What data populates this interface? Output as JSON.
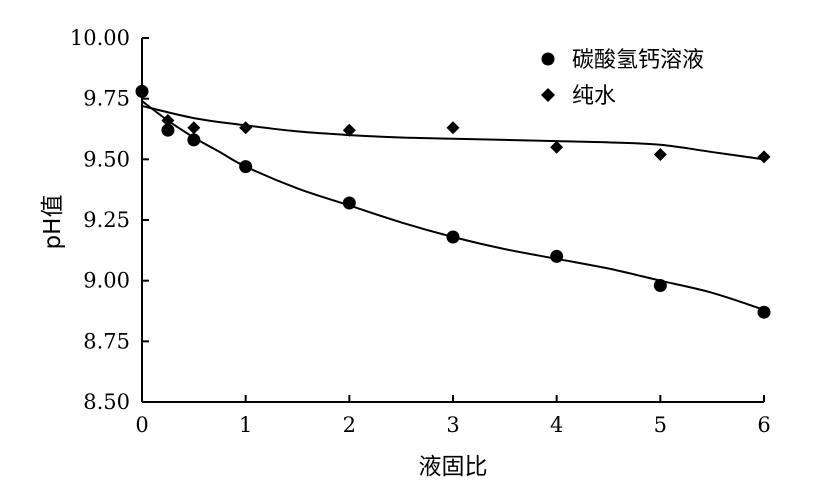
{
  "chart_data": {
    "type": "scatter",
    "xlabel": "液固比",
    "ylabel": "pH值",
    "xlim": [
      0,
      6
    ],
    "ylim": [
      8.5,
      10.0
    ],
    "xticks": [
      0,
      1,
      2,
      3,
      4,
      5,
      6
    ],
    "yticks": [
      8.5,
      8.75,
      9.0,
      9.25,
      9.5,
      9.75,
      10.0
    ],
    "xtick_labels": [
      "0",
      "1",
      "2",
      "3",
      "4",
      "5",
      "6"
    ],
    "ytick_labels": [
      "8.50",
      "8.75",
      "9.00",
      "9.25",
      "9.50",
      "9.75",
      "10.00"
    ],
    "grid": false,
    "legend_position": "top-right",
    "series": [
      {
        "name": "碳酸氢钙溶液",
        "marker": "circle",
        "color": "#000000",
        "x": [
          0,
          0.25,
          0.5,
          1,
          2,
          3,
          4,
          5,
          6
        ],
        "y": [
          9.78,
          9.62,
          9.58,
          9.47,
          9.32,
          9.18,
          9.1,
          8.98,
          8.87
        ],
        "fit_x": [
          0,
          0.25,
          0.5,
          0.75,
          1,
          1.5,
          2,
          2.5,
          3,
          3.5,
          4,
          4.5,
          5,
          5.5,
          6
        ],
        "fit_y": [
          9.74,
          9.66,
          9.59,
          9.53,
          9.47,
          9.38,
          9.31,
          9.24,
          9.18,
          9.13,
          9.09,
          9.05,
          9.0,
          8.95,
          8.88
        ]
      },
      {
        "name": "纯水",
        "marker": "diamond",
        "color": "#000000",
        "x": [
          0,
          0.25,
          0.5,
          1,
          2,
          3,
          4,
          5,
          6
        ],
        "y": [
          9.78,
          9.66,
          9.63,
          9.63,
          9.62,
          9.63,
          9.55,
          9.52,
          9.51
        ],
        "fit_x": [
          0,
          0.5,
          1,
          1.5,
          2,
          2.5,
          3,
          3.5,
          4,
          4.5,
          5,
          5.5,
          6
        ],
        "fit_y": [
          9.72,
          9.67,
          9.64,
          9.615,
          9.6,
          9.59,
          9.585,
          9.58,
          9.575,
          9.57,
          9.56,
          9.53,
          9.5
        ]
      }
    ]
  }
}
